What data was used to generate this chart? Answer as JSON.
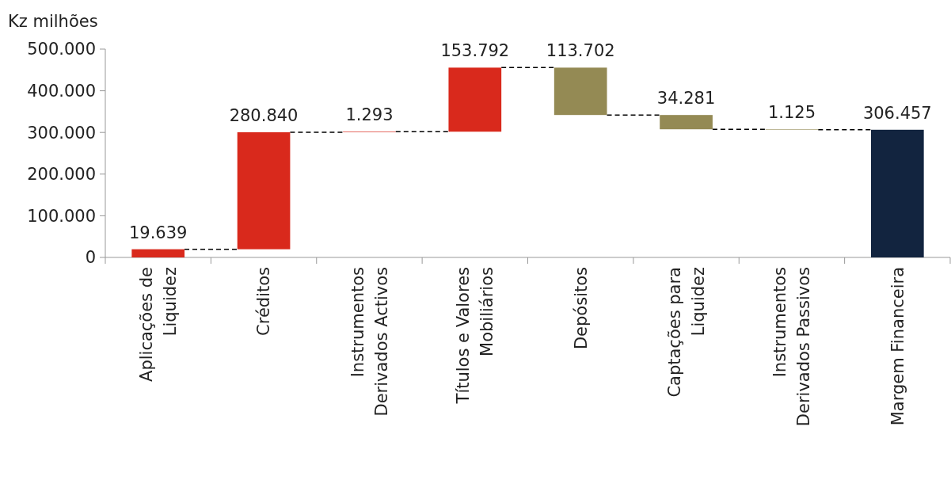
{
  "chart_data": {
    "type": "bar",
    "ylabel": "Kz milhões",
    "categories": [
      "Aplicações de Liquidez",
      "Créditos",
      "Instrumentos Derivados Activos",
      "Títulos e Valores Mobiliários",
      "Depósitos",
      "Captações para Liquidez",
      "Instrumentos Derivados Passivos",
      "Margem Financeira"
    ],
    "values": [
      19639,
      280840,
      1293,
      153792,
      -113702,
      -34281,
      -1125,
      306457
    ],
    "base": [
      0,
      19639,
      300479,
      301772,
      455564,
      341862,
      307581,
      0
    ],
    "colors": [
      "#d9291c",
      "#d9291c",
      "#d9291c",
      "#d9291c",
      "#948a54",
      "#948a54",
      "#948a54",
      "#12243f"
    ],
    "value_labels": [
      "19.639",
      "280.840",
      "1.293",
      "153.792",
      "113.702",
      "34.281",
      "1.125",
      "306.457"
    ],
    "ylim": [
      0,
      500000
    ],
    "yticks": [
      {
        "value": 0,
        "label": "0"
      },
      {
        "value": 100000,
        "label": "100.000"
      },
      {
        "value": 200000,
        "label": "200.000"
      },
      {
        "value": 300000,
        "label": "300.000"
      },
      {
        "value": 400000,
        "label": "400.000"
      },
      {
        "value": 500000,
        "label": "500.000"
      }
    ],
    "grid": false
  }
}
